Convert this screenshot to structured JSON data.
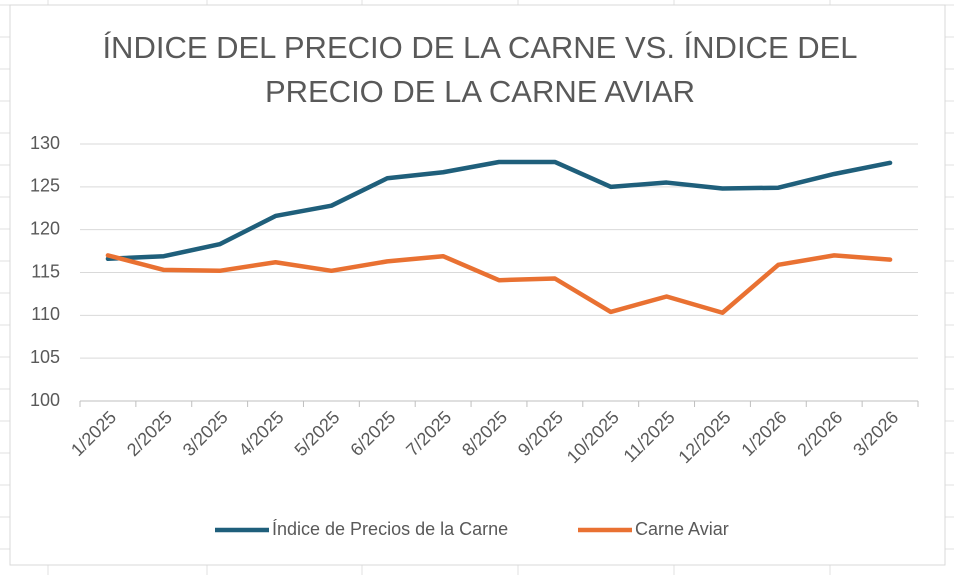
{
  "chart_data": {
    "type": "line",
    "title": "ÍNDICE DEL PRECIO DE LA CARNE VS. ÍNDICE DEL PRECIO DE LA CARNE AVIAR",
    "categories": [
      "1/2025",
      "2/2025",
      "3/2025",
      "4/2025",
      "5/2025",
      "6/2025",
      "7/2025",
      "8/2025",
      "9/2025",
      "10/2025",
      "11/2025",
      "12/2025",
      "1/2026",
      "2/2026",
      "3/2026"
    ],
    "series": [
      {
        "name": "Índice de Precios de la Carne",
        "color": "#1f5f7b",
        "values": [
          116.6,
          116.9,
          118.3,
          121.6,
          122.8,
          126.0,
          126.7,
          127.9,
          127.9,
          125.0,
          125.5,
          124.8,
          124.9,
          126.5,
          127.8
        ]
      },
      {
        "name": "Carne Aviar",
        "color": "#e97132",
        "values": [
          117.0,
          115.3,
          115.2,
          116.2,
          115.2,
          116.3,
          116.9,
          114.1,
          114.3,
          110.4,
          112.2,
          110.3,
          115.9,
          117.0,
          116.5
        ]
      }
    ],
    "ylim": [
      100,
      130
    ],
    "yticks": [
      100,
      105,
      110,
      115,
      120,
      125,
      130
    ],
    "grid": true,
    "legend": "bottom"
  }
}
